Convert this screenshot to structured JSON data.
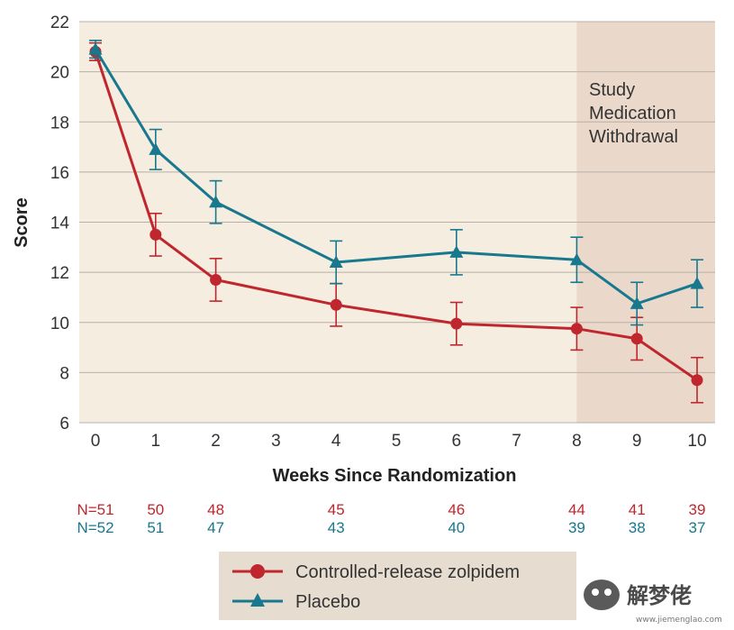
{
  "chart_data": {
    "type": "line",
    "title": "",
    "xlabel": "Weeks Since Randomization",
    "ylabel": "Score",
    "xlim": [
      0,
      10
    ],
    "ylim": [
      6,
      22
    ],
    "x_ticks": [
      "0",
      "1",
      "2",
      "3",
      "4",
      "5",
      "6",
      "7",
      "8",
      "9",
      "10"
    ],
    "y_ticks": [
      "6",
      "8",
      "10",
      "12",
      "14",
      "16",
      "18",
      "20",
      "22"
    ],
    "grid": "horizontal",
    "shaded_region": {
      "x_start": 8,
      "x_end": 10,
      "label": [
        "Study",
        "Medication",
        "Withdrawal"
      ]
    },
    "series": [
      {
        "name": "Controlled-release zolpidem",
        "color": "#c0262d",
        "marker": "circle",
        "x": [
          0,
          1,
          2,
          4,
          6,
          8,
          9,
          10
        ],
        "y": [
          20.8,
          13.5,
          11.7,
          10.7,
          9.95,
          9.75,
          9.35,
          7.7
        ],
        "err": [
          0.35,
          0.85,
          0.85,
          0.85,
          0.85,
          0.85,
          0.85,
          0.9
        ],
        "n_label": "N=51",
        "n": [
          "50",
          "48",
          "45",
          "46",
          "44",
          "41",
          "39"
        ]
      },
      {
        "name": "Placebo",
        "color": "#17788e",
        "marker": "triangle",
        "x": [
          0,
          1,
          2,
          4,
          6,
          8,
          9,
          10
        ],
        "y": [
          20.9,
          16.9,
          14.8,
          12.4,
          12.8,
          12.5,
          10.75,
          11.55
        ],
        "err": [
          0.35,
          0.8,
          0.85,
          0.85,
          0.9,
          0.9,
          0.85,
          0.95
        ],
        "n_label": "N=52",
        "n": [
          "51",
          "47",
          "43",
          "40",
          "39",
          "38",
          "37"
        ]
      }
    ],
    "legend_position": "bottom-center"
  },
  "watermark": {
    "text": "解梦佬",
    "url": "www.jiemenglao.com"
  },
  "colors": {
    "background": "#f5ede0",
    "withdrawal": "#ead9cb",
    "grid": "#b8b0a8",
    "legend_bg": "#e6ddd0"
  }
}
